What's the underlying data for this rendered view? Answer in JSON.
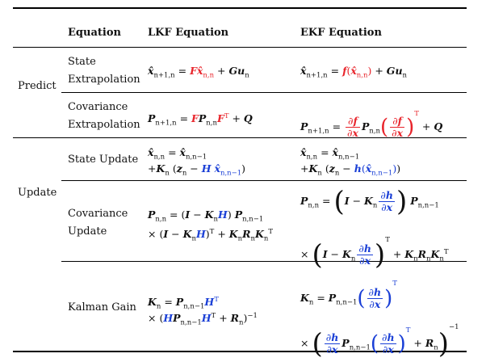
{
  "headers": {
    "equation": "Equation",
    "lkf": "LKF Equation",
    "ekf": "EKF Equation"
  },
  "groups": {
    "predict": "Predict",
    "update": "Update"
  },
  "rows": {
    "state_extrapolation": {
      "line1": "State",
      "line2": "Extrapolation"
    },
    "covariance_extrapolation": {
      "line1": "Covariance",
      "line2": "Extrapolation"
    },
    "state_update": {
      "line1": "State Update"
    },
    "covariance_update": {
      "line1": "Covariance",
      "line2": "Update"
    },
    "kalman_gain": {
      "line1": "Kalman Gain"
    }
  },
  "colors": {
    "red": "#e8242b",
    "blue": "#1a3fd6"
  }
}
